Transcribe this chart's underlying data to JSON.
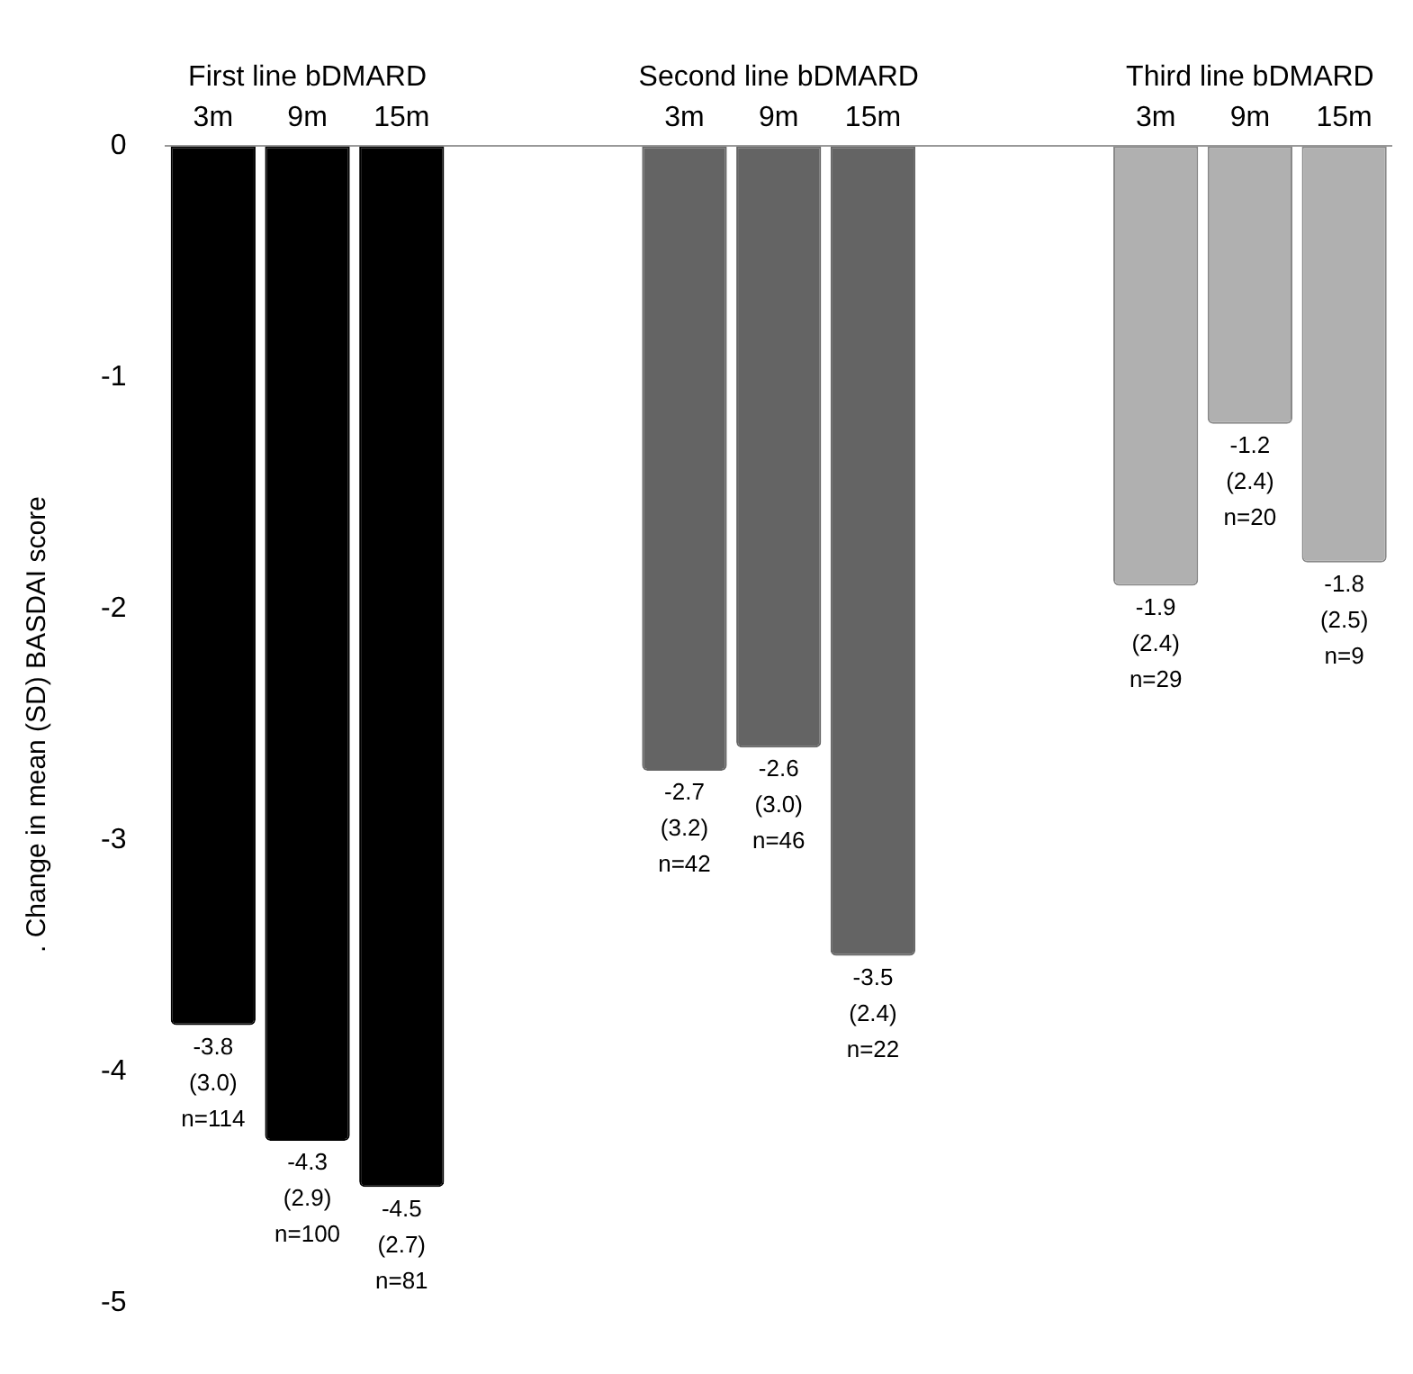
{
  "chart_data": {
    "type": "bar",
    "ylabel": ". Change in mean (SD) BASDAI score",
    "categories": [
      "3m",
      "9m",
      "15m",
      null,
      null,
      "3m",
      "9m",
      "15m",
      null,
      null,
      "3m",
      "9m",
      "15m"
    ],
    "series": [
      {
        "name": "First line bDMARD",
        "color": "#000000",
        "values": [
          -3.8,
          -4.3,
          -4.5,
          null,
          null,
          null,
          null,
          null,
          null,
          null,
          null,
          null,
          null
        ],
        "value_labels": [
          "-3.8\n(3.0)\nn=114",
          "-4.3\n(2.9)\nn=100",
          "-4.5\n(2.7)\nn=81",
          null,
          null,
          null,
          null,
          null,
          null,
          null,
          null,
          null,
          null
        ]
      },
      {
        "name": "Second line bDMARD",
        "color": "#646464",
        "values": [
          null,
          null,
          null,
          null,
          null,
          -2.7,
          -2.6,
          -3.5,
          null,
          null,
          null,
          null,
          null
        ],
        "value_labels": [
          null,
          null,
          null,
          null,
          null,
          "-2.7\n(3.2)\nn=42",
          "-2.6\n(3.0)\nn=46",
          "-3.5\n(2.4)\nn=22",
          null,
          null,
          null,
          null,
          null
        ]
      },
      {
        "name": "Third line bDMARD",
        "color": "#b0b0b0",
        "values": [
          null,
          null,
          null,
          null,
          null,
          null,
          null,
          null,
          null,
          null,
          -1.9,
          -1.2,
          -1.8
        ],
        "value_labels": [
          null,
          null,
          null,
          null,
          null,
          null,
          null,
          null,
          null,
          null,
          "-1.9\n(2.4)\nn=29",
          "-1.2\n(2.4)\nn=20",
          "-1.8\n(2.5)\nn=9"
        ]
      }
    ],
    "ylim": [
      -5,
      0
    ],
    "yticks": [
      0,
      -1,
      -2,
      -3,
      -4,
      -5
    ],
    "grid": false,
    "legend": false
  }
}
